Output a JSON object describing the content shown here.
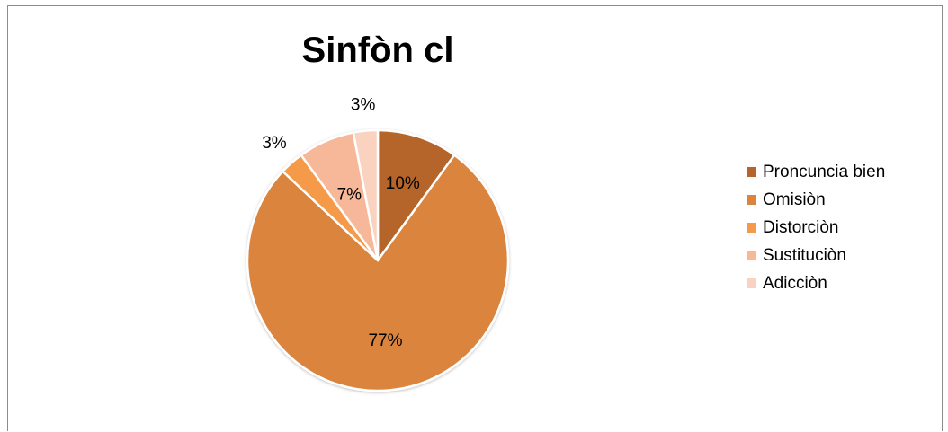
{
  "chart_data": {
    "type": "pie",
    "title": "Sinfòn cl",
    "categories": [
      "Proncuncia bien",
      "Omisiòn",
      "Distorciòn",
      "Sustituciòn",
      "Adicciòn"
    ],
    "values": [
      10,
      77,
      3,
      7,
      3
    ],
    "labels": [
      "10%",
      "77%",
      "3%",
      "7%",
      "3%"
    ],
    "colors": [
      "#b5652b",
      "#db843d",
      "#f59a4a",
      "#f7b899",
      "#f9d3c0"
    ],
    "legend_position": "right"
  }
}
